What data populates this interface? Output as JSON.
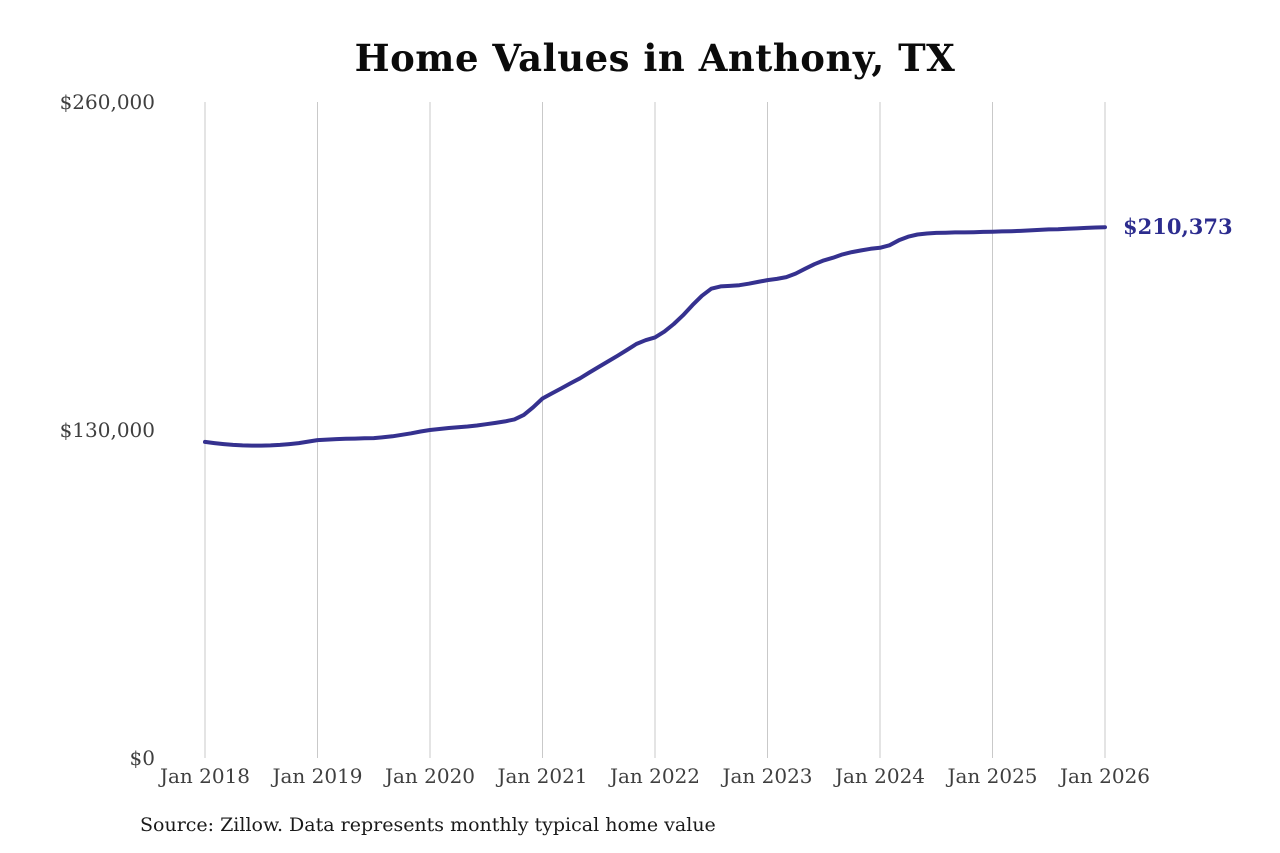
{
  "colors": {
    "background": "#ffffff",
    "line": "#35318f",
    "end_label": "#2c2c8e",
    "gridline": "#c9c9c9",
    "tick_text": "#3f3f3f",
    "title_text": "#0b0b0b",
    "source_text": "#1a1a1a"
  },
  "chart_data": {
    "type": "line",
    "title": "Home Values in Anthony, TX",
    "source_note": "Source: Zillow. Data represents monthly typical home value",
    "end_label": "$210,373",
    "end_value": 210373,
    "xlabel": "",
    "ylabel": "",
    "ylim": [
      0,
      260000
    ],
    "grid": "vertical-only",
    "legend_position": "none",
    "x_unit": "month",
    "x_range": [
      "2018-01",
      "2026-01"
    ],
    "x_tick_labels": [
      "Jan 2018",
      "Jan 2019",
      "Jan 2020",
      "Jan 2021",
      "Jan 2022",
      "Jan 2023",
      "Jan 2024",
      "Jan 2025",
      "Jan 2026"
    ],
    "y_ticks": [
      {
        "label": "$0",
        "value": 0
      },
      {
        "label": "$130,000",
        "value": 130000
      },
      {
        "label": "$260,000",
        "value": 260000
      }
    ],
    "series": [
      {
        "name": "Typical home value",
        "start": "2018-01",
        "interval": "monthly",
        "values": [
          125300,
          124800,
          124400,
          124100,
          123900,
          123800,
          123800,
          123900,
          124100,
          124400,
          124800,
          125400,
          126000,
          126200,
          126400,
          126500,
          126600,
          126700,
          126800,
          127100,
          127500,
          128100,
          128700,
          129400,
          130000,
          130400,
          130800,
          131100,
          131400,
          131800,
          132300,
          132800,
          133400,
          134200,
          136000,
          139000,
          142500,
          144500,
          146500,
          148500,
          150500,
          152800,
          155000,
          157200,
          159400,
          161700,
          164100,
          165600,
          166700,
          169000,
          172000,
          175500,
          179500,
          183200,
          186000,
          186900,
          187100,
          187400,
          188000,
          188700,
          189400,
          189900,
          190600,
          192000,
          193900,
          195700,
          197200,
          198300,
          199600,
          200500,
          201200,
          201800,
          202200,
          203200,
          205200,
          206600,
          207500,
          207900,
          208100,
          208200,
          208300,
          208300,
          208400,
          208500,
          208600,
          208700,
          208800,
          208900,
          209100,
          209300,
          209500,
          209600,
          209800,
          209900,
          210100,
          210250,
          210373
        ]
      }
    ]
  }
}
